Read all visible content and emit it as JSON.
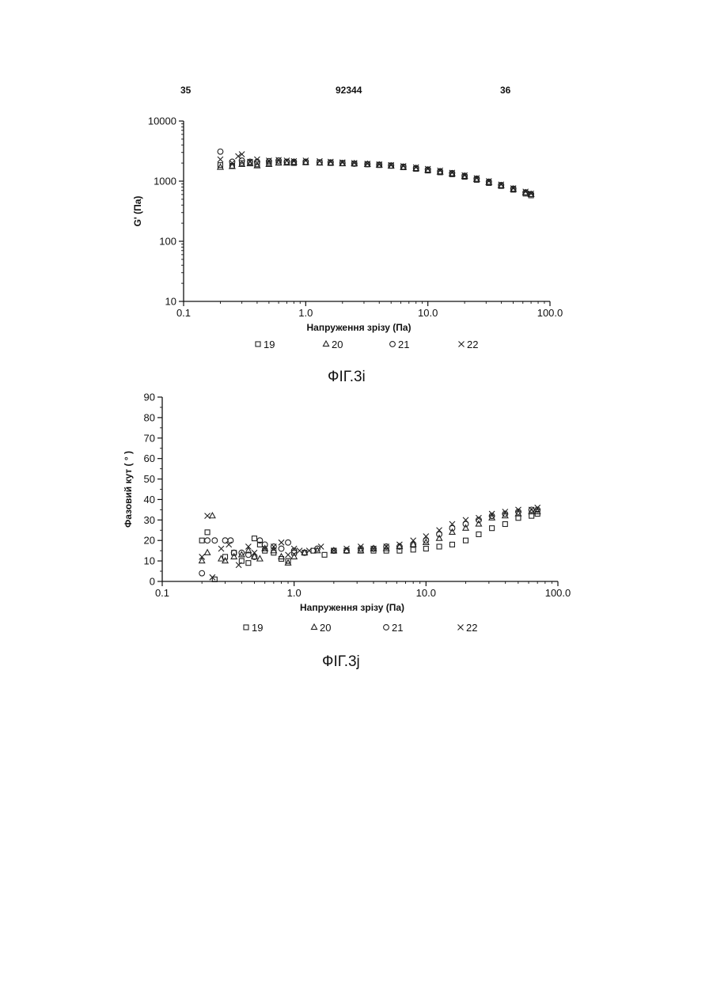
{
  "header": {
    "page_left": "35",
    "doc_number": "92344",
    "page_right": "36"
  },
  "figures": {
    "fig1_caption": "ФІГ.3і",
    "fig2_caption": "ФІГ.3j"
  },
  "chart_data": [
    {
      "type": "scatter",
      "title": "",
      "xlabel": "Напруження зрізу (Па)",
      "ylabel": "G' (Па)",
      "xscale": "log",
      "yscale": "log",
      "xlim": [
        0.1,
        100.0
      ],
      "ylim": [
        10,
        10000
      ],
      "x_ticks": [
        0.1,
        1.0,
        10.0,
        100.0
      ],
      "x_tick_labels": [
        "0.1",
        "1.0",
        "10.0",
        "100.0"
      ],
      "y_ticks": [
        10,
        100,
        1000,
        10000
      ],
      "y_tick_labels": [
        "10",
        "100",
        "1000",
        "10000"
      ],
      "grid": false,
      "legend_position": "bottom",
      "series": [
        {
          "name": "19",
          "marker": "square",
          "x": [
            0.2,
            0.25,
            0.3,
            0.35,
            0.4,
            0.5,
            0.6,
            0.7,
            0.8,
            1.0,
            1.3,
            1.6,
            2.0,
            2.5,
            3.2,
            4.0,
            5.0,
            6.3,
            8.0,
            10.0,
            12.6,
            15.8,
            20.0,
            25.1,
            31.6,
            39.8,
            50.1,
            63.1,
            70.0
          ],
          "y": [
            1850,
            1800,
            2000,
            2050,
            1900,
            2000,
            2050,
            2050,
            2000,
            2050,
            2050,
            2000,
            1980,
            1950,
            1900,
            1850,
            1800,
            1700,
            1600,
            1500,
            1400,
            1300,
            1180,
            1050,
            930,
            830,
            720,
            620,
            580
          ]
        },
        {
          "name": "20",
          "marker": "triangle",
          "x": [
            0.2,
            0.25,
            0.3,
            0.35,
            0.4,
            0.5,
            0.6,
            0.7,
            0.8,
            1.0,
            1.3,
            1.6,
            2.0,
            2.5,
            3.2,
            4.0,
            5.0,
            6.3,
            8.0,
            10.0,
            12.6,
            15.8,
            20.0,
            25.1,
            31.6,
            39.8,
            50.1,
            63.1,
            70.0
          ],
          "y": [
            1700,
            1750,
            1900,
            1950,
            1800,
            1900,
            2000,
            2000,
            2050,
            2050,
            2000,
            2000,
            1950,
            1950,
            1900,
            1850,
            1780,
            1700,
            1620,
            1520,
            1420,
            1320,
            1200,
            1070,
            950,
            840,
            730,
            640,
            600
          ]
        },
        {
          "name": "21",
          "marker": "circle",
          "x": [
            0.2,
            0.25,
            0.3,
            0.35,
            0.4,
            0.5,
            0.6,
            0.7,
            0.8,
            1.0,
            1.3,
            1.6,
            2.0,
            2.5,
            3.2,
            4.0,
            5.0,
            6.3,
            8.0,
            10.0,
            12.6,
            15.8,
            20.0,
            25.1,
            31.6,
            39.8,
            50.1,
            63.1,
            70.0
          ],
          "y": [
            3100,
            2100,
            2200,
            2100,
            2100,
            2150,
            2200,
            2100,
            2100,
            2100,
            2050,
            2050,
            2000,
            1950,
            1920,
            1880,
            1820,
            1740,
            1650,
            1560,
            1460,
            1360,
            1230,
            1100,
            980,
            860,
            750,
            650,
            610
          ]
        },
        {
          "name": "22",
          "marker": "cross",
          "x": [
            0.2,
            0.25,
            0.28,
            0.3,
            0.35,
            0.4,
            0.5,
            0.6,
            0.7,
            0.8,
            1.0,
            1.3,
            1.6,
            2.0,
            2.5,
            3.2,
            4.0,
            5.0,
            6.3,
            8.0,
            10.0,
            12.6,
            15.8,
            20.0,
            25.1,
            31.6,
            39.8,
            50.1,
            63.1,
            70.0
          ],
          "y": [
            2300,
            2000,
            2600,
            2800,
            2100,
            2300,
            2200,
            2250,
            2200,
            2150,
            2200,
            2150,
            2100,
            2050,
            2000,
            1950,
            1900,
            1850,
            1780,
            1700,
            1600,
            1500,
            1380,
            1250,
            1120,
            1000,
            880,
            760,
            670,
            620
          ]
        }
      ]
    },
    {
      "type": "scatter",
      "title": "",
      "xlabel": "Напруження зрізу (Па)",
      "ylabel": "Фазовий кут ( ° )",
      "xscale": "log",
      "yscale": "linear",
      "xlim": [
        0.1,
        100.0
      ],
      "ylim": [
        0,
        90
      ],
      "x_ticks": [
        0.1,
        1.0,
        10.0,
        100.0
      ],
      "x_tick_labels": [
        "0.1",
        "1.0",
        "10.0",
        "100.0"
      ],
      "y_ticks": [
        0,
        10,
        20,
        30,
        40,
        50,
        60,
        70,
        80,
        90
      ],
      "y_tick_labels": [
        "0",
        "10",
        "20",
        "30",
        "40",
        "50",
        "60",
        "70",
        "80",
        "90"
      ],
      "grid": false,
      "legend_position": "bottom",
      "series": [
        {
          "name": "19",
          "marker": "square",
          "x": [
            0.2,
            0.22,
            0.25,
            0.3,
            0.35,
            0.4,
            0.45,
            0.5,
            0.55,
            0.6,
            0.7,
            0.8,
            0.9,
            1.0,
            1.2,
            1.4,
            1.7,
            2.0,
            2.5,
            3.2,
            4.0,
            5.0,
            6.3,
            8.0,
            10.0,
            12.6,
            15.8,
            20.0,
            25.1,
            31.6,
            39.8,
            50.1,
            63.1,
            70.0
          ],
          "y": [
            20,
            24,
            1,
            12,
            14,
            10,
            9,
            21,
            18,
            15,
            14,
            11,
            10,
            14,
            14,
            15,
            13,
            15,
            15,
            15,
            15,
            15,
            15,
            15.5,
            16,
            17,
            18,
            20,
            23,
            26,
            28,
            31,
            32,
            33
          ]
        },
        {
          "name": "20",
          "marker": "triangle",
          "x": [
            0.2,
            0.22,
            0.24,
            0.28,
            0.3,
            0.35,
            0.4,
            0.45,
            0.5,
            0.55,
            0.6,
            0.7,
            0.8,
            0.9,
            1.0,
            1.2,
            1.5,
            2.0,
            2.5,
            3.2,
            4.0,
            5.0,
            6.3,
            8.0,
            10.0,
            12.6,
            15.8,
            20.0,
            25.1,
            31.6,
            39.8,
            50.1,
            63.1,
            70.0
          ],
          "y": [
            10,
            14,
            32,
            11,
            10,
            12,
            13,
            15,
            12,
            11,
            16,
            15,
            12,
            9,
            12,
            14,
            15,
            15,
            15,
            15,
            16,
            16,
            17,
            18,
            19,
            21,
            24,
            26,
            28,
            31,
            32,
            33,
            34,
            34
          ]
        },
        {
          "name": "21",
          "marker": "circle",
          "x": [
            0.2,
            0.22,
            0.25,
            0.3,
            0.33,
            0.35,
            0.4,
            0.45,
            0.5,
            0.55,
            0.6,
            0.7,
            0.8,
            0.9,
            1.0,
            1.2,
            1.5,
            2.0,
            2.5,
            3.2,
            4.0,
            5.0,
            6.3,
            8.0,
            10.0,
            12.6,
            15.8,
            20.0,
            25.1,
            31.6,
            39.8,
            50.1,
            63.1,
            70.0
          ],
          "y": [
            4,
            20,
            20,
            20,
            20,
            14,
            14,
            13,
            12,
            20,
            18,
            17,
            16,
            19,
            15,
            14,
            16,
            15,
            15,
            16,
            16,
            17,
            17,
            18,
            20,
            23,
            26,
            28,
            30,
            32,
            33,
            34,
            35,
            35
          ]
        },
        {
          "name": "22",
          "marker": "cross",
          "x": [
            0.2,
            0.22,
            0.24,
            0.28,
            0.32,
            0.38,
            0.45,
            0.5,
            0.6,
            0.7,
            0.8,
            0.9,
            1.0,
            1.1,
            1.3,
            1.6,
            2.0,
            2.5,
            3.2,
            4.0,
            5.0,
            6.3,
            8.0,
            10.0,
            12.6,
            15.8,
            20.0,
            25.1,
            31.6,
            39.8,
            50.1,
            63.1,
            70.0
          ],
          "y": [
            12,
            32,
            2,
            16,
            18,
            8,
            17,
            14,
            16,
            17,
            19,
            13,
            16,
            15,
            15,
            17,
            15,
            16,
            17,
            16,
            17,
            18,
            20,
            22,
            25,
            28,
            30,
            31,
            33,
            34,
            35,
            35,
            36
          ]
        }
      ]
    }
  ]
}
